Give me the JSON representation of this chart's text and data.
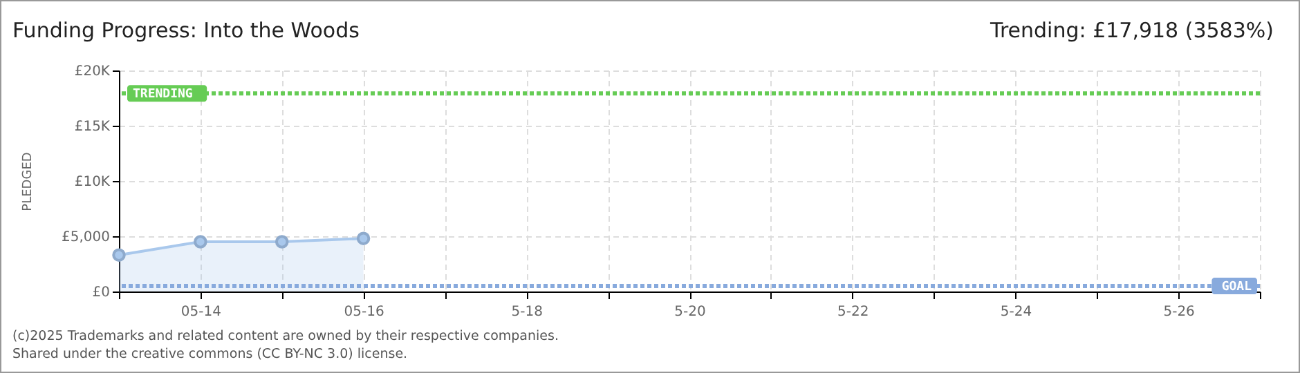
{
  "chart_data": {
    "type": "area",
    "title": "Funding Progress: Into the Woods",
    "subtitle": "Trending: £17,918 (3583%)",
    "ylabel": "PLEDGED",
    "x": [
      "2025-05-13",
      "2025-05-14",
      "2025-05-15",
      "2025-05-16"
    ],
    "series": [
      {
        "color": "#a9c8ec",
        "values": [
          3300,
          4500,
          4500,
          4800
        ]
      }
    ],
    "xlim": [
      "2025-05-13",
      "2025-05-27"
    ],
    "xticks": [
      {
        "value": "2025-05-13",
        "label": null
      },
      {
        "value": "2025-05-14",
        "label": "05-14"
      },
      {
        "value": "2025-05-15",
        "label": null
      },
      {
        "value": "2025-05-16",
        "label": "05-16"
      },
      {
        "value": "2025-05-17",
        "label": null
      },
      {
        "value": "2025-05-18",
        "label": "5-18"
      },
      {
        "value": "2025-05-19",
        "label": null
      },
      {
        "value": "2025-05-20",
        "label": "5-20"
      },
      {
        "value": "2025-05-21",
        "label": null
      },
      {
        "value": "2025-05-22",
        "label": "5-22"
      },
      {
        "value": "2025-05-23",
        "label": null
      },
      {
        "value": "2025-05-24",
        "label": "5-24"
      },
      {
        "value": "2025-05-25",
        "label": null
      },
      {
        "value": "2025-05-26",
        "label": "5-26"
      },
      {
        "value": "2025-05-27",
        "label": null
      }
    ],
    "ylim": [
      0,
      20000
    ],
    "yticks": [
      {
        "value": 0,
        "label": "£0"
      },
      {
        "value": 5000,
        "label": "£5,000"
      },
      {
        "value": 10000,
        "label": "£10K"
      },
      {
        "value": 15000,
        "label": "£15K"
      },
      {
        "value": 20000,
        "label": "£20K"
      }
    ],
    "ref_lines": [
      {
        "axis": "y",
        "value": 17918,
        "label": "TRENDING",
        "color": "#66cc55",
        "line_style": "dotted"
      },
      {
        "axis": "y",
        "value": 500,
        "label": "GOAL",
        "color": "#88aadd",
        "line_style": "dotted"
      }
    ],
    "grid": true,
    "marker": "circle",
    "annotations": [
      "(c)2025 Trademarks and related content are owned by their respective companies.",
      "Shared under the creative commons (CC BY-NC 3.0) license."
    ]
  }
}
